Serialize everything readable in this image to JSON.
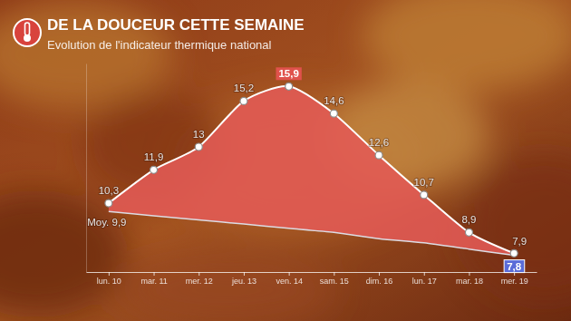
{
  "chart_data": {
    "type": "line",
    "title": "DE LA DOUCEUR CETTE SEMAINE",
    "subtitle": "Evolution de l'indicateur thermique national",
    "categories": [
      "lun. 10",
      "mar. 11",
      "mer. 12",
      "jeu. 13",
      "ven. 14",
      "sam. 15",
      "dim. 16",
      "lun. 17",
      "mar. 18",
      "mer. 19"
    ],
    "series": [
      {
        "color": "#e45b55",
        "marker": "circle",
        "line_style": "solid",
        "values": [
          10.3,
          11.9,
          13,
          15.2,
          15.9,
          14.6,
          12.6,
          10.7,
          8.9,
          7.9
        ],
        "value_labels": [
          "10,3",
          "11,9",
          "13",
          "15,2",
          "15,9",
          "14,6",
          "12,6",
          "10,7",
          "8,9",
          "7,9"
        ]
      },
      {
        "color": "#dcdce4",
        "marker": "none",
        "line_style": "solid",
        "values": [
          9.9,
          9.7,
          9.5,
          9.3,
          9.1,
          8.9,
          8.6,
          8.4,
          8.1,
          7.8
        ],
        "value_labels": [
          "Moy. 9,9",
          null,
          null,
          null,
          null,
          null,
          null,
          null,
          null,
          "7,8"
        ]
      }
    ],
    "ylim": [
      7,
      17
    ],
    "tick_labels": "x",
    "data_labels": true,
    "grid": false
  }
}
